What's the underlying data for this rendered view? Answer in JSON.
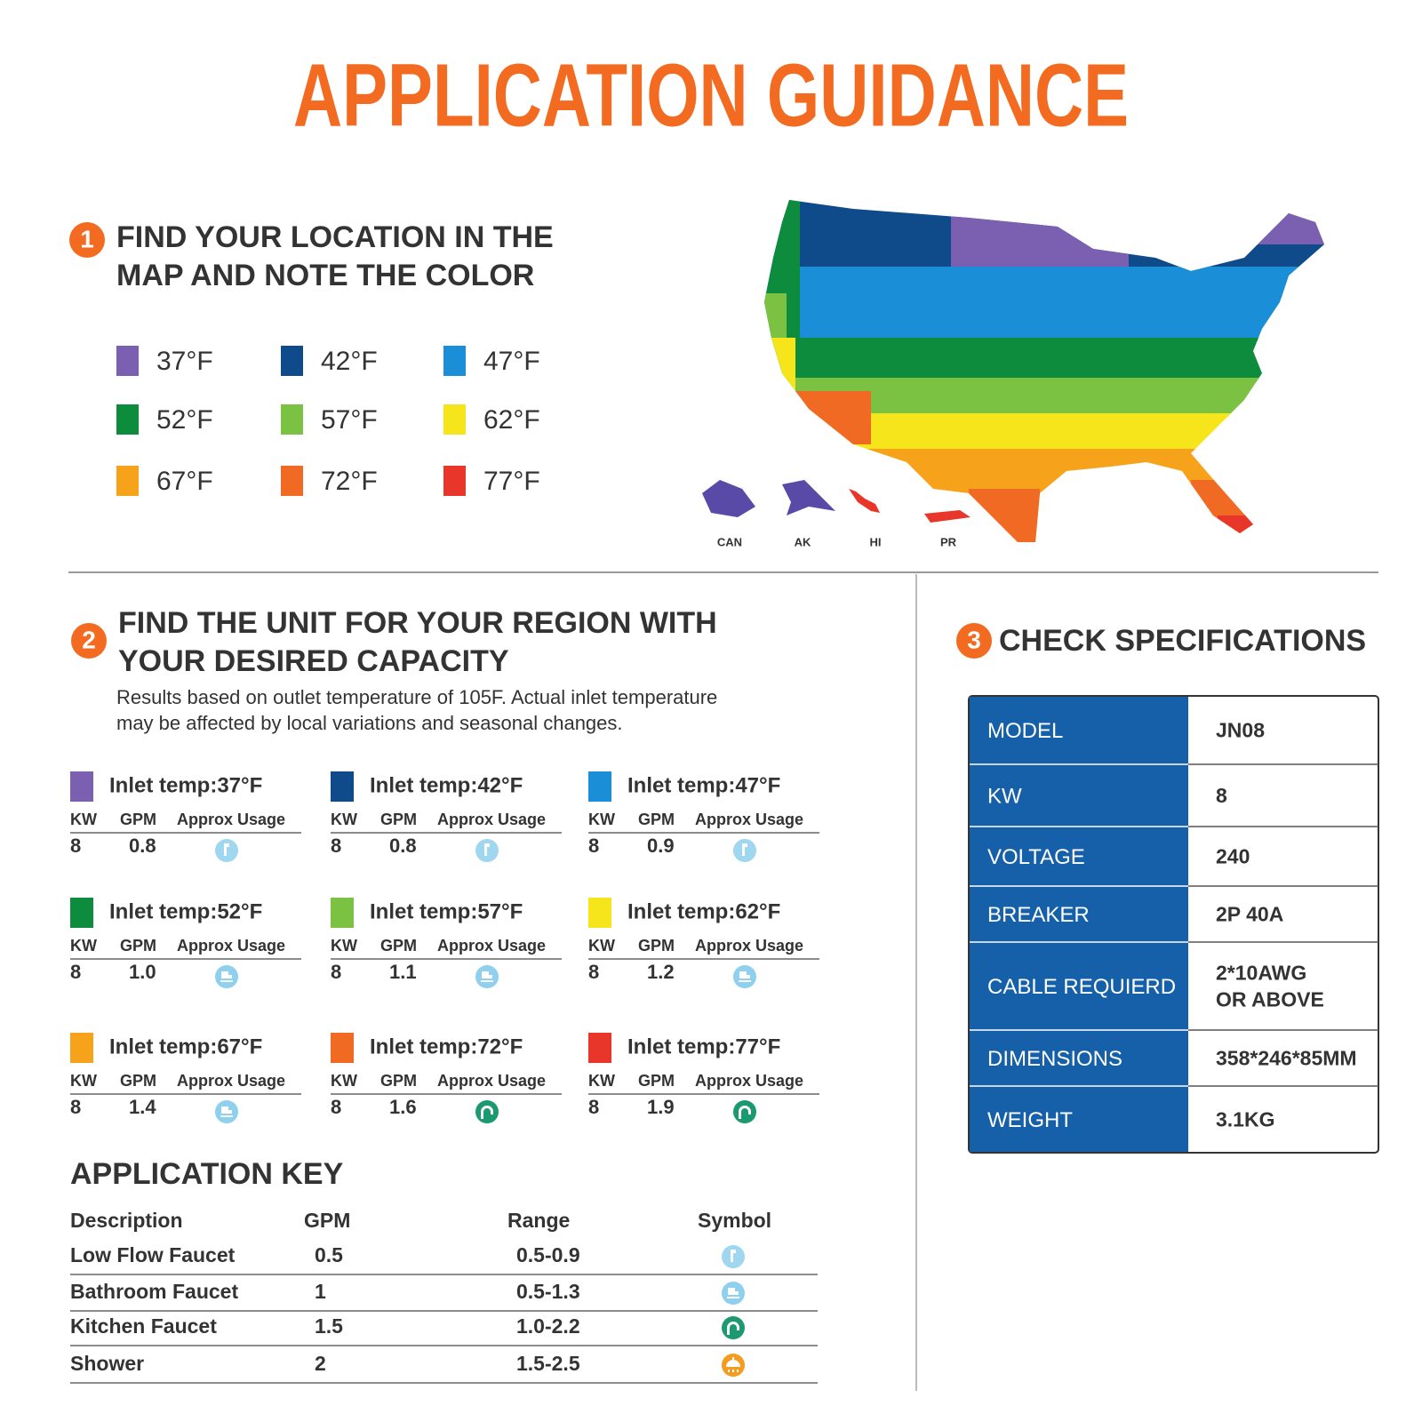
{
  "title": "APPLICATION GUIDANCE",
  "step1": {
    "number": "1",
    "heading": [
      "FIND YOUR LOCATION IN THE",
      "MAP AND NOTE THE COLOR"
    ],
    "legend": [
      {
        "label": "37°F",
        "color": "#7b5fb0"
      },
      {
        "label": "42°F",
        "color": "#0f4a8a"
      },
      {
        "label": "47°F",
        "color": "#1a8fd8"
      },
      {
        "label": "52°F",
        "color": "#0e8c3e"
      },
      {
        "label": "57°F",
        "color": "#7cc242"
      },
      {
        "label": "62°F",
        "color": "#f6e51b"
      },
      {
        "label": "67°F",
        "color": "#f7a21b"
      },
      {
        "label": "72°F",
        "color": "#f06a24"
      },
      {
        "label": "77°F",
        "color": "#e8362a"
      }
    ]
  },
  "map": {
    "labels": [
      "CAN",
      "AK",
      "HI",
      "PR"
    ]
  },
  "step2": {
    "number": "2",
    "heading": [
      "FIND THE UNIT FOR YOUR REGION WITH",
      "YOUR DESIRED CAPACITY"
    ],
    "note": [
      "Results based on outlet temperature of 105F. Actual inlet temperature",
      "may be affected by local variations and seasonal changes."
    ],
    "columns": [
      "KW",
      "GPM",
      "Approx Usage"
    ],
    "units": [
      {
        "label": "Inlet temp:37°F",
        "kw": "8",
        "gpm": "0.8"
      },
      {
        "label": "Inlet temp:42°F",
        "kw": "8",
        "gpm": "0.8"
      },
      {
        "label": "Inlet temp:47°F",
        "kw": "8",
        "gpm": "0.9"
      },
      {
        "label": "Inlet temp:52°F",
        "kw": "8",
        "gpm": "1.0"
      },
      {
        "label": "Inlet temp:57°F",
        "kw": "8",
        "gpm": "1.1"
      },
      {
        "label": "Inlet temp:62°F",
        "kw": "8",
        "gpm": "1.2"
      },
      {
        "label": "Inlet temp:67°F",
        "kw": "8",
        "gpm": "1.4"
      },
      {
        "label": "Inlet temp:72°F",
        "kw": "8",
        "gpm": "1.6"
      },
      {
        "label": "Inlet temp:77°F",
        "kw": "8",
        "gpm": "1.9"
      }
    ]
  },
  "key": {
    "title": "APPLICATION KEY",
    "headers": [
      "Description",
      "GPM",
      "Range",
      "Symbol"
    ],
    "rows": [
      [
        "Low Flow Faucet",
        "0.5",
        "0.5-0.9"
      ],
      [
        "Bathroom Faucet",
        "1",
        "0.5-1.3"
      ],
      [
        "Kitchen Faucet",
        "1.5",
        "1.0-2.2"
      ],
      [
        "Shower",
        "2",
        "1.5-2.5"
      ]
    ]
  },
  "step3": {
    "number": "3",
    "heading": "CHECK SPECIFICATIONS",
    "specs": [
      [
        "MODEL",
        [
          "JN08"
        ]
      ],
      [
        "KW",
        [
          "8"
        ]
      ],
      [
        "VOLTAGE",
        [
          "240"
        ]
      ],
      [
        "BREAKER",
        [
          "2P 40A"
        ]
      ],
      [
        "CABLE REQUIERD",
        [
          "2*10AWG",
          "OR ABOVE"
        ]
      ],
      [
        "DIMENSIONS",
        [
          "358*246*85MM"
        ]
      ],
      [
        "WEIGHT",
        [
          "3.1KG"
        ]
      ]
    ]
  }
}
